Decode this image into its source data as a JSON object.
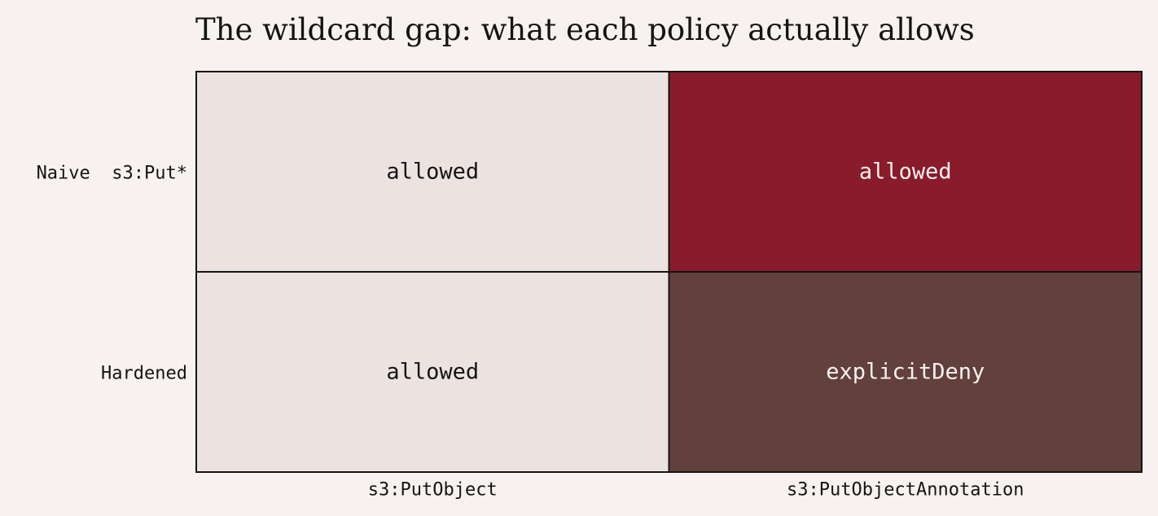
{
  "chart_data": {
    "type": "heatmap",
    "title": "The wildcard gap: what each policy actually allows",
    "rows": [
      "Naive  s3:Put*",
      "Hardened"
    ],
    "columns": [
      "s3:PutObject",
      "s3:PutObjectAnnotation"
    ],
    "values": [
      [
        "allowed",
        "allowed"
      ],
      [
        "allowed",
        "explicitDeny"
      ]
    ],
    "cell_fill": [
      [
        "#ece3e1",
        "#8a1b2b"
      ],
      [
        "#ece3e1",
        "#62403d"
      ]
    ],
    "cell_text_color": [
      [
        "#141414",
        "#f7f2ef"
      ],
      [
        "#141414",
        "#f7f2ef"
      ]
    ],
    "colors": {
      "background": "#f7f2ef",
      "grid_line": "#141414",
      "text": "#141414"
    }
  }
}
